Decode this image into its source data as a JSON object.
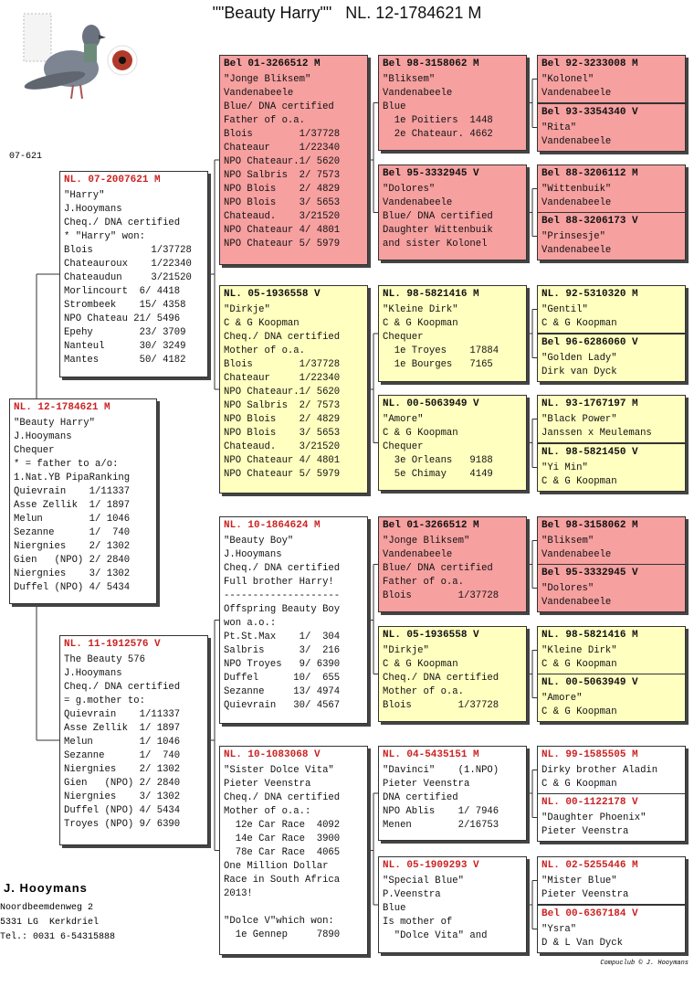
{
  "title": "\"\"Beauty Harry\"\"   NL. 12-1784621 M",
  "note": "07-621",
  "boxes": [
    {
      "ring": "NL. 12-1784621 M",
      "fill": "#ffffff",
      "ring_color": "#cc2222",
      "lines": [
        "\"Beauty Harry\"",
        "J.Hooymans",
        "Chequer",
        "* = father to a/o:",
        "1.Nat.YB PipaRanking",
        "Quievrain    1/11337",
        "Asse Zellik  1/ 1897",
        "Melun        1/ 1046",
        "Sezanne      1/  740",
        "Niergnies    2/ 1302",
        "Gien   (NPO) 2/ 2840",
        "Niergnies    3/ 1302",
        "Duffel (NPO) 4/ 5434"
      ]
    },
    {
      "ring": "NL. 07-2007621 M",
      "fill": "#ffffff",
      "ring_color": "#cc2222",
      "lines": [
        "\"Harry\"",
        "J.Hooymans",
        "Cheq./ DNA certified",
        "* \"Harry\" won:",
        "Blois          1/37728",
        "Chateauroux    1/22340",
        "Chateaudun     3/21520",
        "Morlincourt  6/ 4418",
        "Strombeek    15/ 4358",
        "NPO Chateau 21/ 5496",
        "Epehy        23/ 3709",
        "Nanteul      30/ 3249",
        "Mantes       50/ 4182"
      ]
    },
    {
      "ring": "NL. 11-1912576 V",
      "fill": "#ffffff",
      "ring_color": "#cc2222",
      "lines": [
        "The Beauty 576",
        "J.Hooymans",
        "Cheq./ DNA certified",
        "= g.mother to:",
        "Quievrain    1/11337",
        "Asse Zellik  1/ 1897",
        "Melun        1/ 1046",
        "Sezanne      1/  740",
        "Niergnies    2/ 1302",
        "Gien   (NPO) 2/ 2840",
        "Niergnies    3/ 1302",
        "Duffel (NPO) 4/ 5434",
        "Troyes (NPO) 9/ 6390"
      ]
    },
    {
      "ring": "Bel 01-3266512 M",
      "fill": "#f6a0a0",
      "ring_color": "#111111",
      "lines": [
        "\"Jonge Bliksem\"",
        "Vandenabeele",
        "Blue/ DNA certified",
        "Father of o.a.",
        "Blois        1/37728",
        "Chateaur     1/22340",
        "NPO Chateaur.1/ 5620",
        "NPO Salbris  2/ 7573",
        "NPO Blois    2/ 4829",
        "NPO Blois    3/ 5653",
        "Chateaud.    3/21520",
        "NPO Chateaur 4/ 4801",
        "NPO Chateaur 5/ 5979"
      ]
    },
    {
      "ring": "NL. 05-1936558 V",
      "fill": "#ffffc0",
      "ring_color": "#111111",
      "lines": [
        "\"Dirkje\"",
        "C & G Koopman",
        "Cheq./ DNA certified",
        "Mother of o.a.",
        "Blois        1/37728",
        "Chateaur     1/22340",
        "NPO Chateaur.1/ 5620",
        "NPO Salbris  2/ 7573",
        "NPO Blois    2/ 4829",
        "NPO Blois    3/ 5653",
        "Chateaud.    3/21520",
        "NPO Chateaur 4/ 4801",
        "NPO Chateaur 5/ 5979"
      ]
    },
    {
      "ring": "NL. 10-1864624 M",
      "fill": "#ffffff",
      "ring_color": "#cc2222",
      "lines": [
        "\"Beauty Boy\"",
        "J.Hooymans",
        "Cheq./ DNA certified",
        "Full brother Harry!",
        "--------------------",
        "Offspring Beauty Boy",
        "won a.o.:",
        "Pt.St.Max    1/  304",
        "Salbris      3/  216",
        "NPO Troyes   9/ 6390",
        "Duffel      10/  655",
        "Sezanne     13/ 4974",
        "Quievrain   30/ 4567"
      ]
    },
    {
      "ring": "NL. 10-1083068 V",
      "fill": "#ffffff",
      "ring_color": "#cc2222",
      "lines": [
        "\"Sister Dolce Vita\"",
        "Pieter Veenstra",
        "Cheq./ DNA certified",
        "Mother of o.a.:",
        "  12e Car Race  4092",
        "  14e Car Race  3900",
        "  78e Car Race  4065",
        "One Million Dollar",
        "Race in South Africa",
        "2013!",
        null,
        "\"Dolce V\"which won:",
        "  1e Gennep     7890"
      ]
    },
    {
      "ring": "Bel 98-3158062 M",
      "fill": "#f6a0a0",
      "ring_color": "#111111",
      "lines": [
        "\"Bliksem\"",
        "Vandenabeele",
        "Blue",
        "  1e Poitiers  1448",
        "  2e Chateaur. 4662"
      ]
    },
    {
      "ring": "Bel 95-3332945 V",
      "fill": "#f6a0a0",
      "ring_color": "#111111",
      "lines": [
        "\"Dolores\"",
        "Vandenabeele",
        "Blue/ DNA certified",
        "Daughter Wittenbuik",
        "and sister Kolonel"
      ]
    },
    {
      "ring": "NL. 98-5821416 M",
      "fill": "#ffffc0",
      "ring_color": "#111111",
      "lines": [
        "\"Kleine Dirk\"",
        "C & G Koopman",
        "Chequer",
        "  1e Troyes    17884",
        "  1e Bourges   7165"
      ]
    },
    {
      "ring": "NL. 00-5063949 V",
      "fill": "#ffffc0",
      "ring_color": "#111111",
      "lines": [
        "\"Amore\"",
        "C & G Koopman",
        "Chequer",
        "  3e Orleans   9188",
        "  5e Chimay    4149"
      ]
    },
    {
      "ring": "Bel 01-3266512 M",
      "fill": "#f6a0a0",
      "ring_color": "#111111",
      "lines": [
        "\"Jonge Bliksem\"",
        "Vandenabeele",
        "Blue/ DNA certified",
        "Father of o.a.",
        "Blois        1/37728"
      ]
    },
    {
      "ring": "NL. 05-1936558 V",
      "fill": "#ffffc0",
      "ring_color": "#111111",
      "lines": [
        "\"Dirkje\"",
        "C & G Koopman",
        "Cheq./ DNA certified",
        "Mother of o.a.",
        "Blois        1/37728"
      ]
    },
    {
      "ring": "NL. 04-5435151 M",
      "fill": "#ffffff",
      "ring_color": "#cc2222",
      "lines": [
        "\"Davinci\"    (1.NPO)",
        "Pieter Veenstra",
        "DNA certified",
        "NPO Ablis    1/ 7946",
        "Menen        2/16753"
      ]
    },
    {
      "ring": "NL. 05-1909293 V",
      "fill": "#ffffff",
      "ring_color": "#cc2222",
      "lines": [
        "\"Special Blue\"",
        "P.Veenstra",
        "Blue",
        "Is mother of",
        "  \"Dolce Vita\" and"
      ]
    },
    {
      "ring": "Bel 92-3233008 M",
      "fill": "#f6a0a0",
      "ring_color": "#111111",
      "lines": [
        "\"Kolonel\"",
        "Vandenabeele"
      ]
    },
    {
      "ring": "Bel 93-3354340 V",
      "fill": "#f6a0a0",
      "ring_color": "#111111",
      "lines": [
        "\"Rita\"",
        "Vandenabeele"
      ]
    },
    {
      "ring": "Bel 88-3206112 M",
      "fill": "#f6a0a0",
      "ring_color": "#111111",
      "lines": [
        "\"Wittenbuik\"",
        "Vandenabeele"
      ]
    },
    {
      "ring": "Bel 88-3206173 V",
      "fill": "#f6a0a0",
      "ring_color": "#111111",
      "lines": [
        "\"Prinsesje\"",
        "Vandenabeele"
      ]
    },
    {
      "ring": "NL. 92-5310320 M",
      "fill": "#ffffc0",
      "ring_color": "#111111",
      "lines": [
        "\"Gentil\"",
        "C & G Koopman"
      ]
    },
    {
      "ring": "Bel 96-6286060 V",
      "fill": "#ffffc0",
      "ring_color": "#111111",
      "lines": [
        "\"Golden Lady\"",
        "Dirk van Dyck"
      ]
    },
    {
      "ring": "NL. 93-1767197 M",
      "fill": "#ffffc0",
      "ring_color": "#111111",
      "lines": [
        "\"Black Power\"",
        "Janssen x Meulemans"
      ]
    },
    {
      "ring": "NL. 98-5821450 V",
      "fill": "#ffffc0",
      "ring_color": "#111111",
      "lines": [
        "\"Yi Min\"",
        "C & G Koopman"
      ]
    },
    {
      "ring": "Bel 98-3158062 M",
      "fill": "#f6a0a0",
      "ring_color": "#111111",
      "lines": [
        "\"Bliksem\"",
        "Vandenabeele"
      ]
    },
    {
      "ring": "Bel 95-3332945 V",
      "fill": "#f6a0a0",
      "ring_color": "#111111",
      "lines": [
        "\"Dolores\"",
        "Vandenabeele"
      ]
    },
    {
      "ring": "NL. 98-5821416 M",
      "fill": "#ffffc0",
      "ring_color": "#111111",
      "lines": [
        "\"Kleine Dirk\"",
        "C & G Koopman"
      ]
    },
    {
      "ring": "NL. 00-5063949 V",
      "fill": "#ffffc0",
      "ring_color": "#111111",
      "lines": [
        "\"Amore\"",
        "C & G Koopman"
      ]
    },
    {
      "ring": "NL. 99-1585505 M",
      "fill": "#ffffff",
      "ring_color": "#cc2222",
      "lines": [
        "Dirky brother Aladin",
        "C & G Koopman"
      ]
    },
    {
      "ring": "NL. 00-1122178 V",
      "fill": "#ffffff",
      "ring_color": "#cc2222",
      "lines": [
        "\"Daughter Phoenix\"",
        "Pieter Veenstra"
      ]
    },
    {
      "ring": "NL. 02-5255446 M",
      "fill": "#ffffff",
      "ring_color": "#cc2222",
      "lines": [
        "\"Mister Blue\"",
        "Pieter Veenstra"
      ]
    },
    {
      "ring": "Bel 00-6367184 V",
      "fill": "#ffffff",
      "ring_color": "#cc2222",
      "lines": [
        "\"Ysra\"",
        "D & L Van Dyck"
      ]
    }
  ],
  "footer": {
    "name": "J. Hooymans",
    "address": [
      "Noordbeemdenweg 2",
      "5331 LG  Kerkdriel",
      "Tel.: 0031 6-54315888"
    ]
  },
  "credit": "Compuclub © J. Hooymans"
}
